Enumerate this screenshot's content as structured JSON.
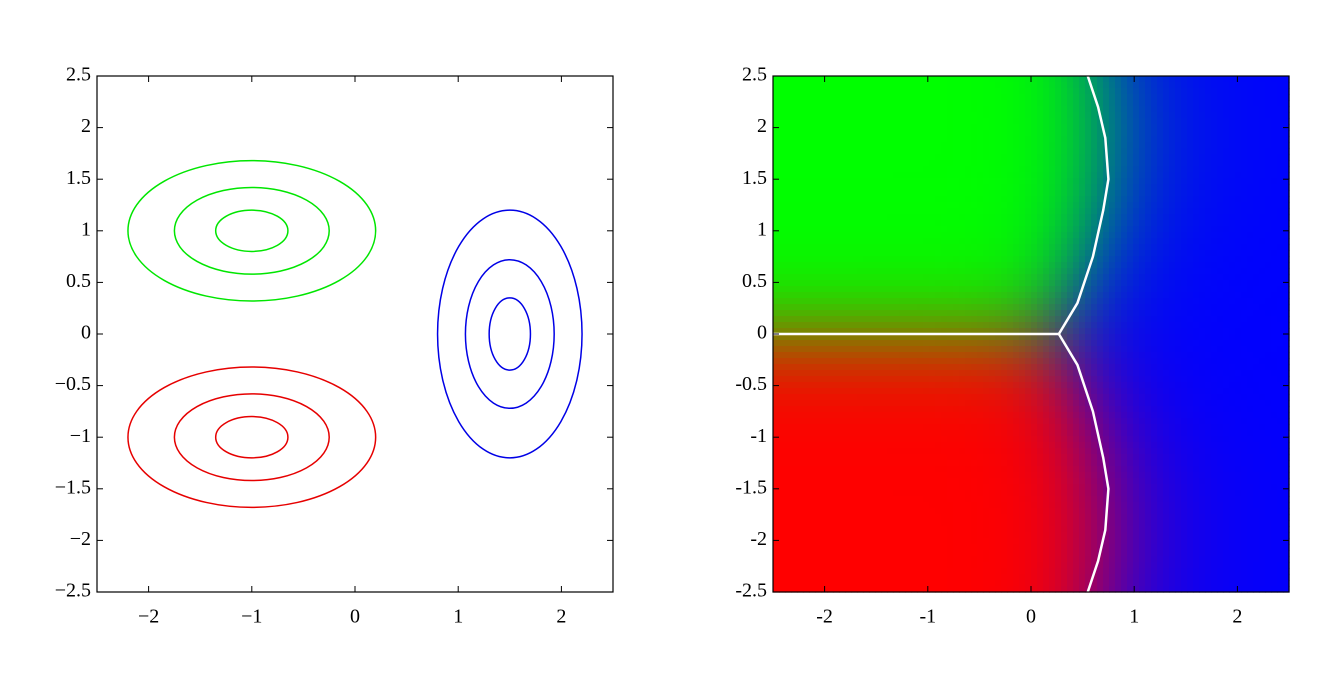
{
  "chart_data": [
    {
      "type": "contour",
      "xlim": [
        -2.5,
        2.5
      ],
      "ylim": [
        -2.5,
        2.5
      ],
      "xticks": [
        {
          "value": -2,
          "label": "−2"
        },
        {
          "value": -1,
          "label": "−1"
        },
        0,
        1,
        2
      ],
      "yticks": [
        {
          "value": -2.5,
          "label": "−2.5"
        },
        {
          "value": -2,
          "label": "−2"
        },
        {
          "value": -1.5,
          "label": "−1.5"
        },
        {
          "value": -1,
          "label": "−1"
        },
        {
          "value": -0.5,
          "label": "−0.5"
        },
        0,
        0.5,
        1,
        1.5,
        2,
        2.5
      ],
      "series": [
        {
          "color": "#00e600",
          "center": [
            -1,
            1
          ],
          "rx": [
            1.2,
            0.75,
            0.35
          ],
          "ry": [
            0.68,
            0.42,
            0.2
          ]
        },
        {
          "color": "#e60000",
          "center": [
            -1,
            -1
          ],
          "rx": [
            1.2,
            0.75,
            0.35
          ],
          "ry": [
            0.68,
            0.42,
            0.2
          ]
        },
        {
          "color": "#0000e6",
          "center": [
            1.5,
            0
          ],
          "rx": [
            0.7,
            0.43,
            0.2
          ],
          "ry": [
            1.2,
            0.72,
            0.35
          ]
        }
      ]
    },
    {
      "type": "decision-map",
      "xlim": [
        -2.5,
        2.5
      ],
      "ylim": [
        -2.5,
        2.5
      ],
      "xticks": [
        -2,
        -1,
        0,
        1,
        2
      ],
      "yticks": [
        -2.5,
        -2,
        -1.5,
        -1,
        -0.5,
        0,
        0.5,
        1,
        1.5,
        2,
        2.5
      ],
      "classes": [
        {
          "color": "#00ff00",
          "center": [
            -1,
            1
          ],
          "sd": [
            1.0,
            0.7
          ]
        },
        {
          "color": "#ff0000",
          "center": [
            -1,
            -1
          ],
          "sd": [
            1.0,
            0.7
          ]
        },
        {
          "color": "#0000ff",
          "center": [
            1.5,
            0
          ],
          "sd": [
            0.7,
            1.0
          ]
        }
      ],
      "boundary_color": "#ffffff",
      "boundaries": [
        {
          "x": [
            -2.5,
            0.27
          ],
          "y": [
            0,
            0
          ]
        },
        {
          "x": [
            0.27,
            0.45,
            0.6,
            0.7,
            0.75,
            0.72,
            0.65,
            0.55
          ],
          "y": [
            0,
            0.3,
            0.75,
            1.2,
            1.5,
            1.9,
            2.2,
            2.5
          ]
        },
        {
          "x": [
            0.27,
            0.45,
            0.6,
            0.7,
            0.75,
            0.72,
            0.65,
            0.55
          ],
          "y": [
            0,
            -0.3,
            -0.75,
            -1.2,
            -1.5,
            -1.9,
            -2.2,
            -2.5
          ]
        }
      ]
    }
  ]
}
